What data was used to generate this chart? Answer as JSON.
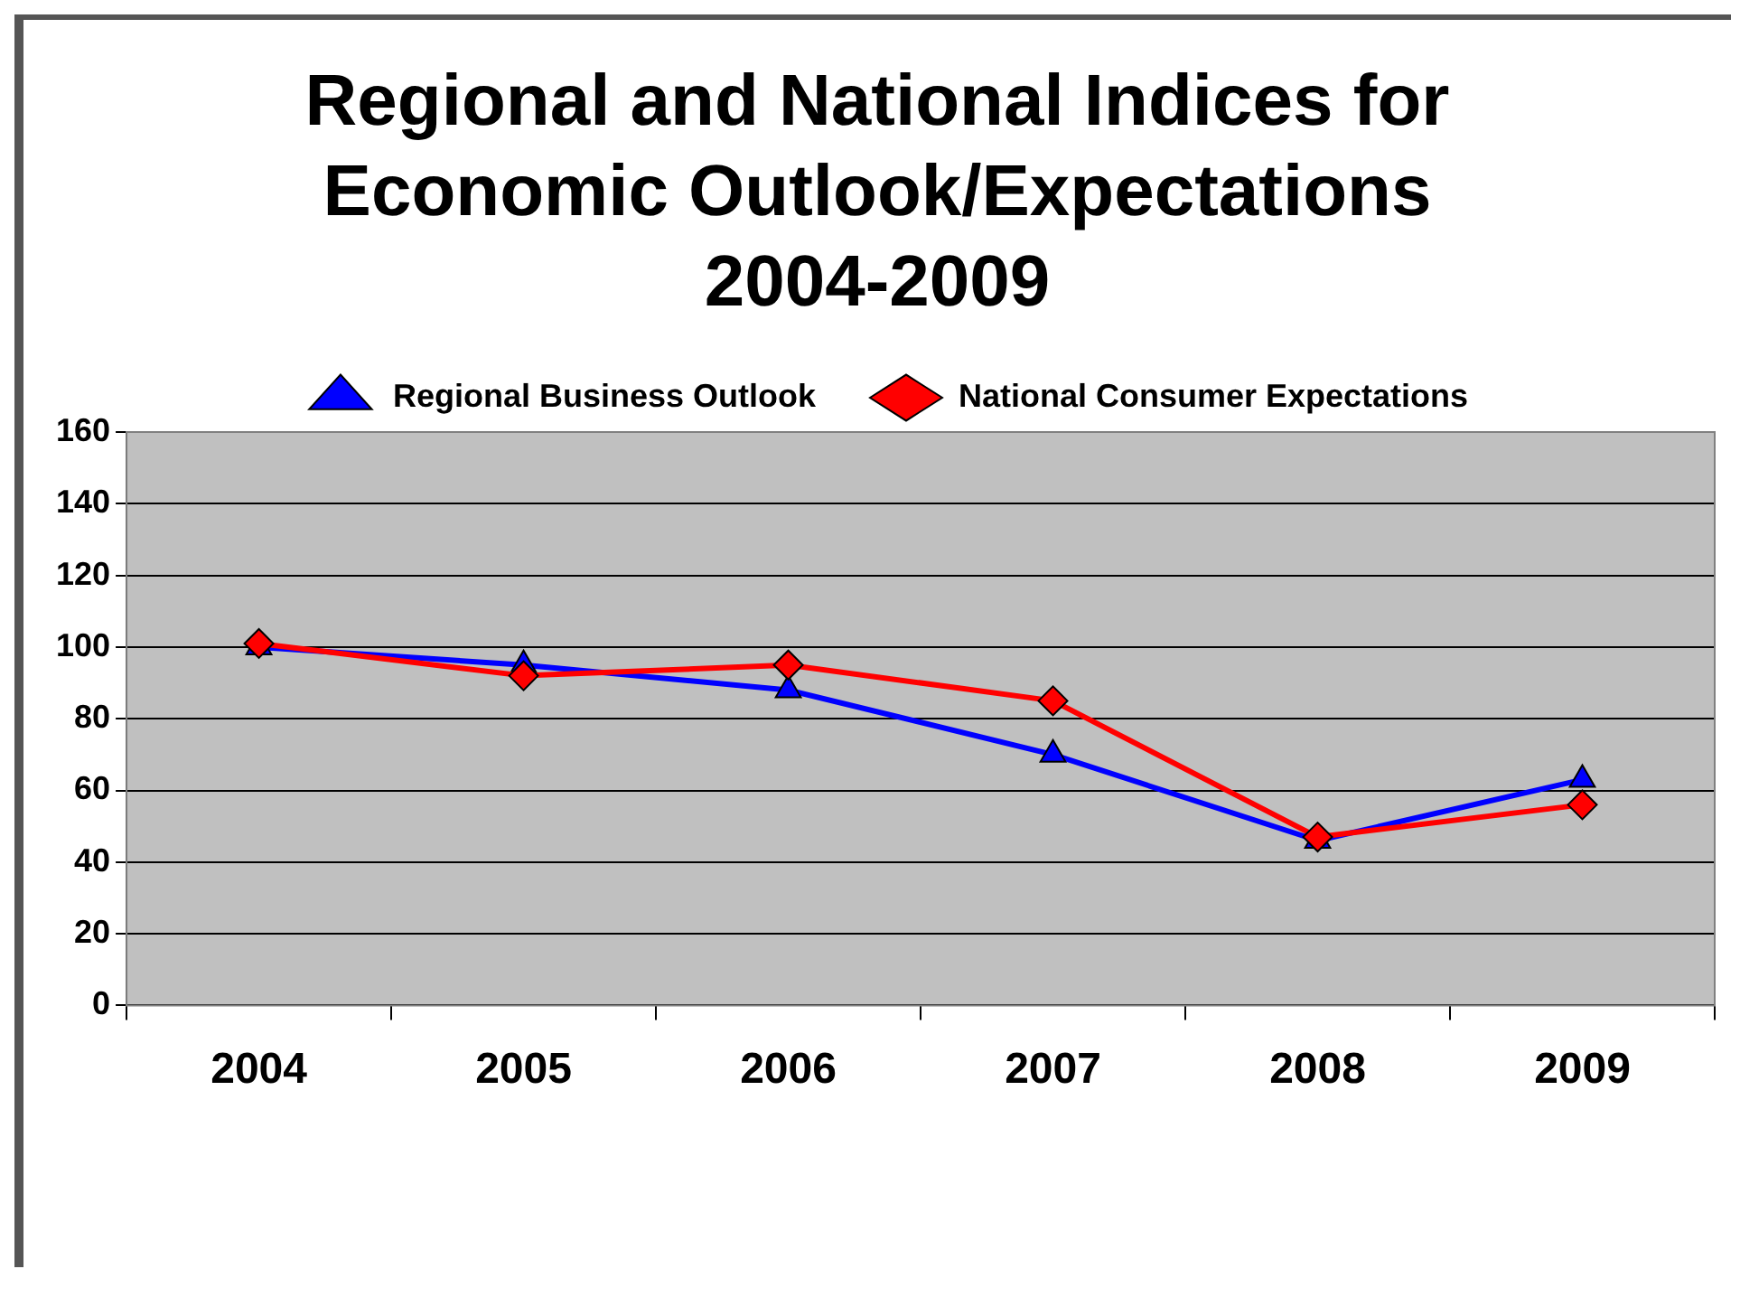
{
  "chart_data": {
    "type": "line",
    "title": "Regional and National Indices for Economic Outlook/Expectations 2004-2009",
    "categories": [
      "2004",
      "2005",
      "2006",
      "2007",
      "2008",
      "2009"
    ],
    "series": [
      {
        "name": "Regional Business Outlook",
        "color": "#0000ff",
        "marker": "triangle",
        "values": [
          100,
          95,
          88,
          70,
          46,
          63
        ]
      },
      {
        "name": "National Consumer Expectations",
        "color": "#ff0000",
        "marker": "diamond",
        "values": [
          101,
          92,
          95,
          85,
          47,
          56
        ]
      }
    ],
    "ylim": [
      0,
      160
    ],
    "yticks": [
      0,
      20,
      40,
      60,
      80,
      100,
      120,
      140,
      160
    ],
    "grid": "y",
    "legend": "top"
  }
}
